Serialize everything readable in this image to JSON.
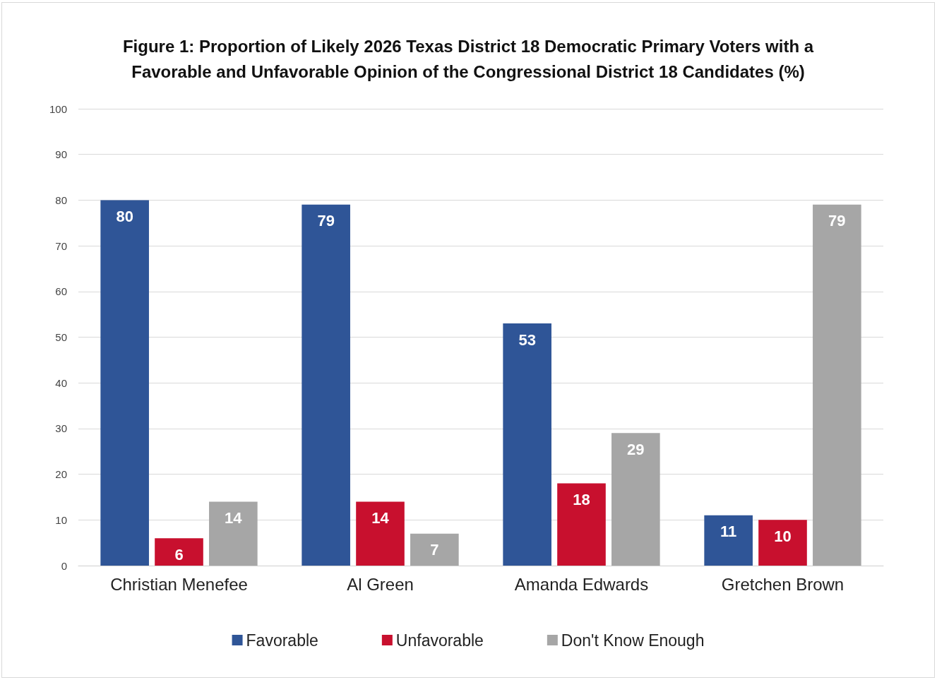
{
  "chart_data": {
    "type": "bar",
    "title": "Figure 1: Proportion of Likely 2026 Texas District 18 Democratic Primary Voters with a\nFavorable and Unfavorable Opinion of the Congressional District 18 Candidates (%)",
    "categories": [
      "Christian Menefee",
      "Al Green",
      "Amanda Edwards",
      "Gretchen Brown"
    ],
    "series": [
      {
        "name": "Favorable",
        "color": "#2f5597",
        "values": [
          80,
          79,
          53,
          11
        ]
      },
      {
        "name": "Unfavorable",
        "color": "#c8102e",
        "values": [
          6,
          14,
          18,
          10
        ]
      },
      {
        "name": "Don't Know Enough",
        "color": "#a6a6a6",
        "values": [
          14,
          7,
          29,
          79
        ]
      }
    ],
    "ylim": [
      0,
      100
    ],
    "yticks": [
      0,
      10,
      20,
      30,
      40,
      50,
      60,
      70,
      80,
      90,
      100
    ],
    "grid": "y",
    "legend": "bottom",
    "data_labels": true
  }
}
